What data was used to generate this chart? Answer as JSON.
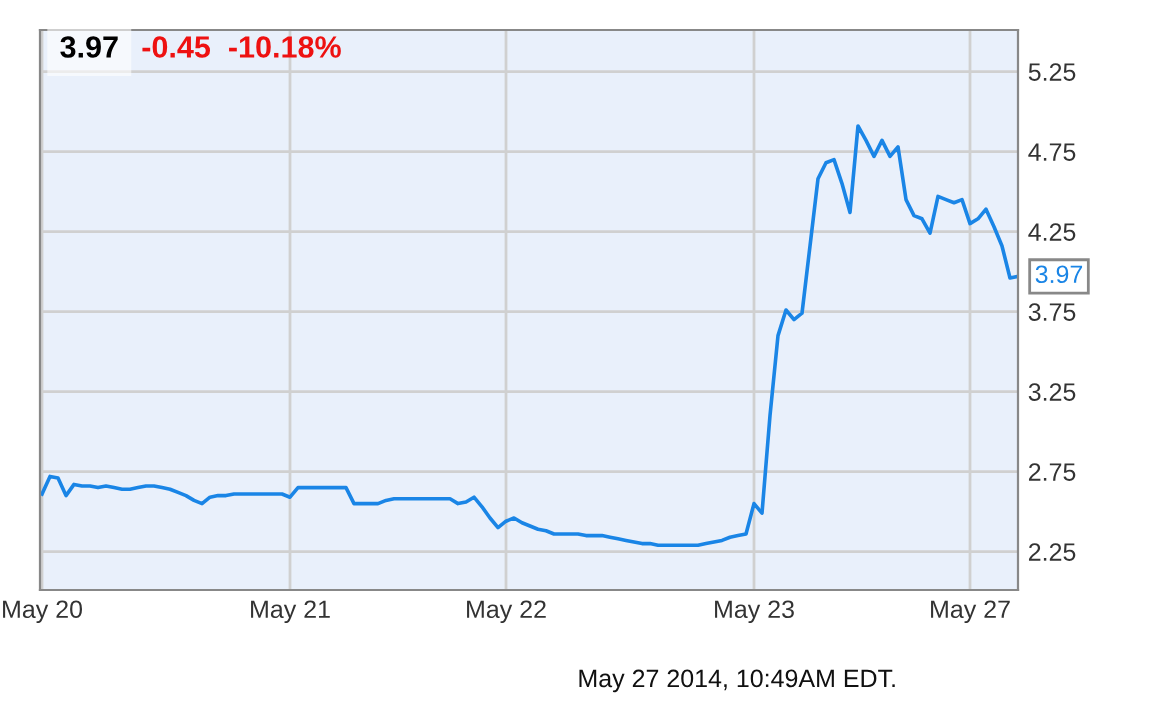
{
  "chart_data": {
    "type": "line",
    "title": "3.97",
    "subtitle": "-0.45  -10.18%",
    "categories": [
      "May 20",
      null,
      null,
      null,
      null,
      null,
      null,
      null,
      null,
      null,
      null,
      null,
      null,
      null,
      null,
      null,
      null,
      null,
      null,
      null,
      null,
      null,
      null,
      null,
      null,
      null,
      null,
      null,
      null,
      null,
      null,
      "May 21",
      null,
      null,
      null,
      null,
      null,
      null,
      null,
      null,
      null,
      null,
      null,
      null,
      null,
      null,
      null,
      null,
      null,
      null,
      null,
      null,
      null,
      null,
      null,
      null,
      null,
      null,
      "May 22",
      null,
      null,
      null,
      null,
      null,
      null,
      null,
      null,
      null,
      null,
      null,
      null,
      null,
      null,
      null,
      null,
      null,
      null,
      null,
      null,
      null,
      null,
      null,
      null,
      null,
      null,
      null,
      null,
      null,
      null,
      "May 23",
      null,
      null,
      null,
      null,
      null,
      null,
      null,
      null,
      null,
      null,
      null,
      null,
      null,
      null,
      null,
      null,
      null,
      null,
      null,
      null,
      null,
      null,
      null,
      null,
      null,
      null,
      "May 27",
      null,
      null,
      null,
      null,
      null,
      null
    ],
    "series": [
      {
        "color": "#1a85e6",
        "values": [
          2.61,
          2.72,
          2.71,
          2.6,
          2.67,
          2.66,
          2.66,
          2.65,
          2.66,
          2.65,
          2.64,
          2.64,
          2.65,
          2.66,
          2.66,
          2.65,
          2.64,
          2.62,
          2.6,
          2.57,
          2.55,
          2.59,
          2.6,
          2.6,
          2.61,
          2.61,
          2.61,
          2.61,
          2.61,
          2.61,
          2.61,
          2.59,
          2.65,
          2.65,
          2.65,
          2.65,
          2.65,
          2.65,
          2.65,
          2.55,
          2.55,
          2.55,
          2.55,
          2.57,
          2.58,
          2.58,
          2.58,
          2.58,
          2.58,
          2.58,
          2.58,
          2.58,
          2.55,
          2.56,
          2.59,
          2.53,
          2.46,
          2.4,
          2.44,
          2.46,
          2.43,
          2.41,
          2.39,
          2.38,
          2.36,
          2.36,
          2.36,
          2.36,
          2.35,
          2.35,
          2.35,
          2.34,
          2.33,
          2.32,
          2.31,
          2.3,
          2.3,
          2.29,
          2.29,
          2.29,
          2.29,
          2.29,
          2.29,
          2.3,
          2.31,
          2.32,
          2.34,
          2.35,
          2.36,
          2.55,
          2.49,
          3.1,
          3.6,
          3.76,
          3.7,
          3.74,
          4.16,
          4.58,
          4.68,
          4.7,
          4.55,
          4.37,
          4.91,
          4.82,
          4.72,
          4.82,
          4.72,
          4.78,
          4.45,
          4.35,
          4.33,
          4.24,
          4.47,
          4.45,
          4.43,
          4.45,
          4.3,
          4.33,
          4.39,
          4.28,
          4.16,
          3.96,
          3.97
        ]
      }
    ],
    "ylim": [
      2.01,
      5.51
    ],
    "yticks": [
      2.25,
      2.75,
      3.25,
      3.75,
      4.25,
      4.75,
      5.25
    ],
    "grid": true,
    "annotations": [
      "3.97",
      "May 27 2014, 10:49AM EDT."
    ]
  }
}
